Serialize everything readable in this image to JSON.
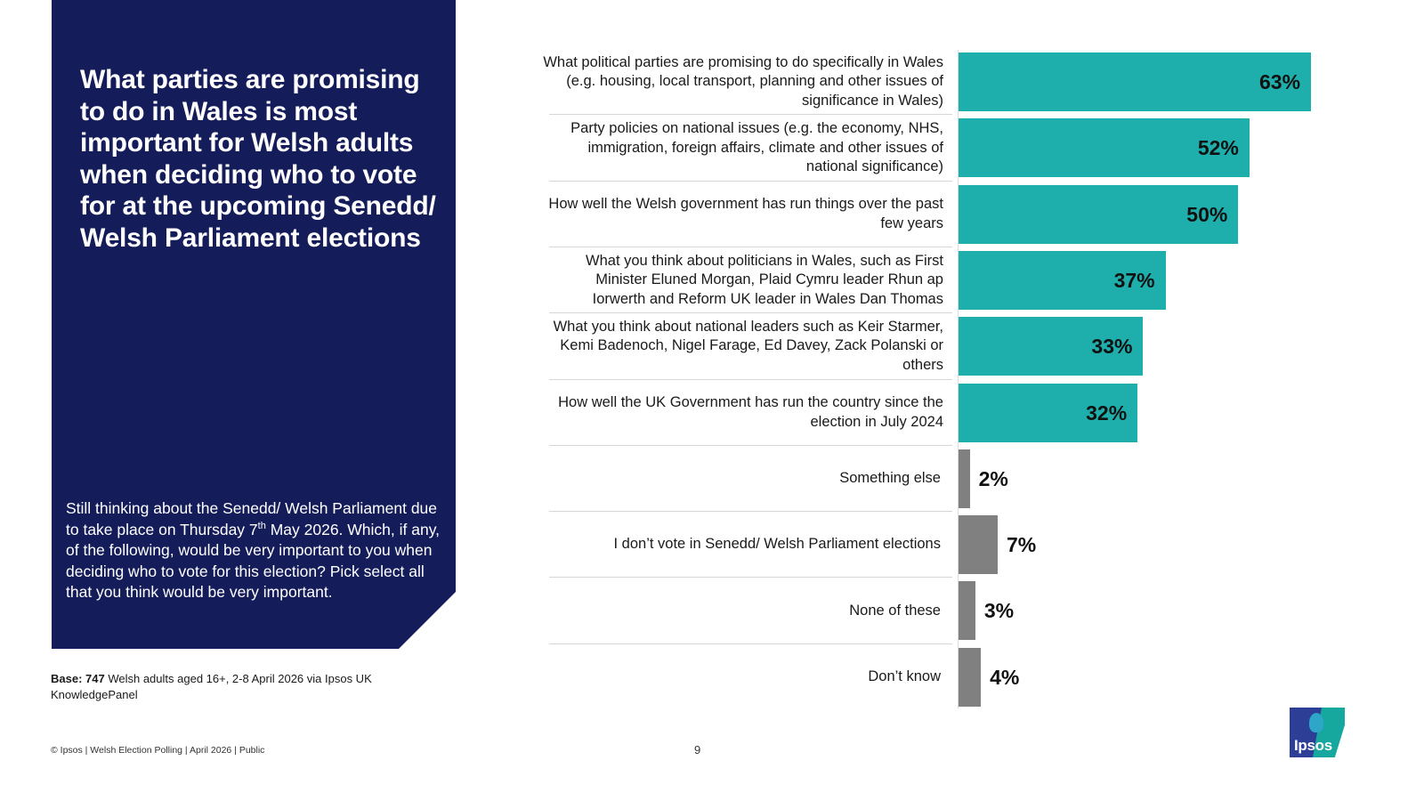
{
  "panel": {
    "headline": "What parties are promising to do in Wales is most important for Welsh adults when deciding who to vote for at the upcoming Senedd/ Welsh Parliament elections",
    "question_part1": "Still thinking about the Senedd/ Welsh Parliament due to take place on Thursday 7",
    "question_sup": "th",
    "question_part2": " May 2026. Which, if any, of the following, would be very important to you when deciding who to vote for this election?  Pick select all that you think would be very important."
  },
  "base": {
    "label": "Base: 747",
    "text": " Welsh adults aged 16+, 2-8 April 2026 via Ipsos UK KnowledgePanel"
  },
  "footer": {
    "text": "© Ipsos | Welsh Election Polling | April 2026 | Public",
    "page_number": "9"
  },
  "logo": {
    "text": "Ipsos"
  },
  "colors": {
    "primary_bar": "#1eafad",
    "secondary_bar": "#808080",
    "panel": "#141c5a"
  },
  "chart_data": {
    "type": "bar",
    "orientation": "horizontal",
    "title": "What parties are promising to do in Wales is most important for Welsh adults when deciding who to vote for at the upcoming Senedd/ Welsh Parliament elections",
    "xlabel": "",
    "ylabel": "",
    "xlim": [
      0,
      63
    ],
    "grid": false,
    "value_suffix": "%",
    "categories": [
      "What political parties are promising to do specifically in Wales (e.g. housing, local transport, planning and other issues of significance in Wales)",
      "Party policies on national issues (e.g. the economy, NHS, immigration, foreign affairs, climate and other issues of national significance)",
      "How well the Welsh government has run things over the past few years",
      "What you think about politicians in Wales, such as First Minister Eluned Morgan, Plaid Cymru leader Rhun ap Iorwerth and Reform UK leader in Wales Dan Thomas",
      "What you think about national leaders such as Keir Starmer, Kemi Badenoch, Nigel Farage, Ed Davey, Zack Polanski or others",
      "How well the UK Government has run the country since the election in July 2024",
      "Something else",
      "I don’t vote in Senedd/ Welsh Parliament elections",
      "None of these",
      "Don’t know"
    ],
    "values": [
      63,
      52,
      50,
      37,
      33,
      32,
      2,
      7,
      3,
      4
    ],
    "labels": [
      "63%",
      "52%",
      "50%",
      "37%",
      "33%",
      "32%",
      "2%",
      "7%",
      "3%",
      "4%"
    ],
    "bar_groups": [
      "primary",
      "primary",
      "primary",
      "primary",
      "primary",
      "primary",
      "secondary",
      "secondary",
      "secondary",
      "secondary"
    ]
  }
}
